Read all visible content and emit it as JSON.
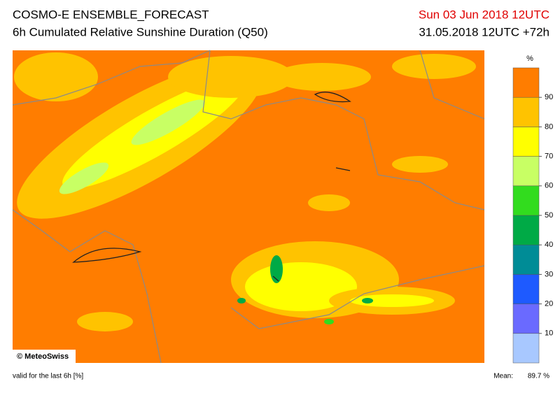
{
  "header": {
    "title": "COSMO-E ENSEMBLE_FORECAST",
    "subtitle": "6h Cumulated Relative Sunshine Duration (Q50)",
    "valid_time": "Sun 03 Jun 2018 12UTC",
    "run": "31.05.2018 12UTC +72h"
  },
  "map": {
    "credit": "© MeteoSwiss"
  },
  "colorbar": {
    "unit": "%",
    "lim": [
      0,
      100
    ],
    "ticks": [
      10,
      20,
      30,
      40,
      50,
      60,
      70,
      80,
      90
    ],
    "colors": [
      "#a8c8ff",
      "#6a6aff",
      "#1e5aff",
      "#008c96",
      "#00aa46",
      "#32dc1e",
      "#c8ff64",
      "#ffff00",
      "#ffc300",
      "#ff7d00"
    ]
  },
  "footer": {
    "note": "valid for the last 6h [%]",
    "mean_label": "Mean:",
    "mean": "89.7 %"
  }
}
